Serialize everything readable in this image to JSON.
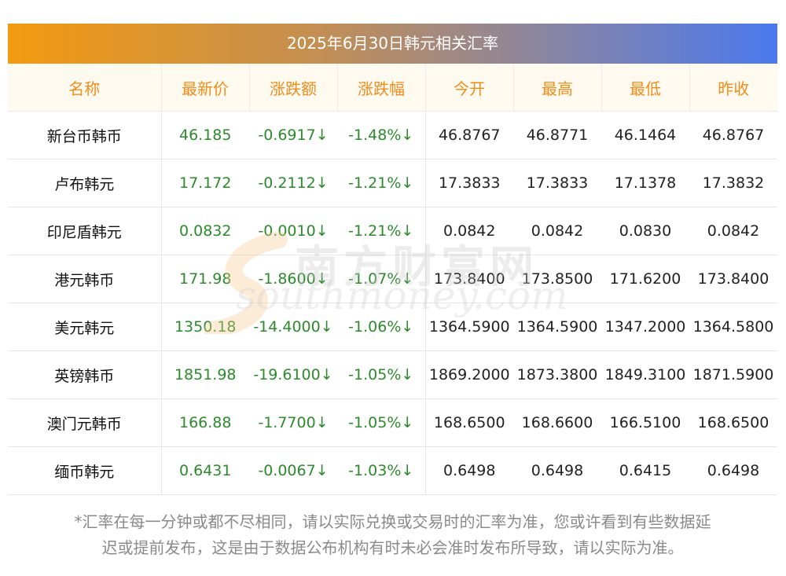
{
  "title": "2025年6月30日韩元相关汇率",
  "columns": [
    "名称",
    "最新价",
    "涨跌额",
    "涨跌幅",
    "今开",
    "最高",
    "最低",
    "昨收"
  ],
  "rows": [
    [
      "新台币韩币",
      "46.185",
      "-0.6917↓",
      "-1.48%↓",
      "46.8767",
      "46.8771",
      "46.1464",
      "46.8767"
    ],
    [
      "卢布韩元",
      "17.172",
      "-0.2112↓",
      "-1.21%↓",
      "17.3833",
      "17.3833",
      "17.1378",
      "17.3832"
    ],
    [
      "印尼盾韩元",
      "0.0832",
      "-0.0010↓",
      "-1.21%↓",
      "0.0842",
      "0.0842",
      "0.0830",
      "0.0842"
    ],
    [
      "港元韩币",
      "171.98",
      "-1.8600↓",
      "-1.07%↓",
      "173.8400",
      "173.8500",
      "171.6200",
      "173.8400"
    ],
    [
      "美元韩元",
      "1350.18",
      "-14.4000↓",
      "-1.06%↓",
      "1364.5900",
      "1364.5900",
      "1347.2000",
      "1364.5800"
    ],
    [
      "英镑韩币",
      "1851.98",
      "-19.6100↓",
      "-1.05%↓",
      "1869.2000",
      "1873.3800",
      "1849.3100",
      "1871.5900"
    ],
    [
      "澳门元韩币",
      "166.88",
      "-1.7700↓",
      "-1.05%↓",
      "168.6500",
      "168.6600",
      "166.5100",
      "168.6500"
    ],
    [
      "缅币韩元",
      "0.6431",
      "-0.0067↓",
      "-1.03%↓",
      "0.6498",
      "0.6498",
      "0.6415",
      "0.6498"
    ]
  ],
  "footnote_line1": "*汇率在每一分钟或都不尽相同，请以实际兑换或交易时的汇率为准，您或许看到有些数据延",
  "footnote_line2": "迟或提前发布，这是由于数据公布机构有时未必会准时发布所导致，请以实际为准。",
  "watermark": {
    "cn": "南方财富网",
    "en": "southmoney.com"
  },
  "colors": {
    "header_text": "#f08c1a",
    "green": "#2c8a2c",
    "gradient_start": "#f39a10",
    "gradient_end": "#4a79ee"
  }
}
